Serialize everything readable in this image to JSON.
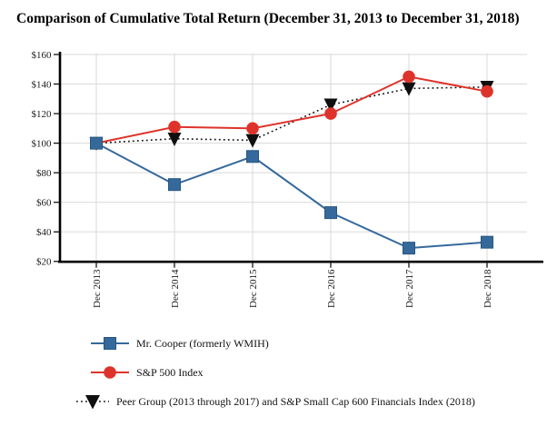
{
  "chart_data": {
    "type": "line",
    "title": "Comparison of Cumulative Total Return (December 31, 2013 to December 31, 2018)",
    "categories": [
      "Dec 2013",
      "Dec 2014",
      "Dec 2015",
      "Dec 2016",
      "Dec 2017",
      "Dec 2018"
    ],
    "series": [
      {
        "name": "Mr. Cooper (formerly WMIH)",
        "marker": "square",
        "line": "solid",
        "color": "#35699b",
        "marker_border": "#26567f",
        "values": [
          100,
          72,
          91,
          53,
          29,
          33
        ]
      },
      {
        "name": "S&P 500 Index",
        "marker": "circle",
        "line": "solid",
        "color": "#de332b",
        "marker_border": "#de332b",
        "values": [
          100,
          111,
          110,
          120,
          145,
          135
        ]
      },
      {
        "name": "Peer Group (2013 through 2017) and S&P Small Cap 600 Financials Index (2018)",
        "marker": "triangle-down",
        "line": "dotted",
        "color": "#0f0f0f",
        "marker_border": "#0f0f0f",
        "values": [
          100,
          103,
          102,
          126,
          137,
          138
        ]
      }
    ],
    "xlabel": "",
    "ylabel": "",
    "ylim": [
      20,
      160
    ],
    "ytick_step": 20,
    "ytick_prefix": "$",
    "ytick_labels": [
      "$20",
      "$40",
      "$60",
      "$80",
      "$100",
      "$120",
      "$140",
      "$160"
    ],
    "grid": true,
    "legend_position": "bottom-left",
    "colors": {
      "axis": "#000000",
      "grid": "#d9d9d9",
      "tick_text": "#1a1a1a",
      "background": "#ffffff"
    }
  }
}
